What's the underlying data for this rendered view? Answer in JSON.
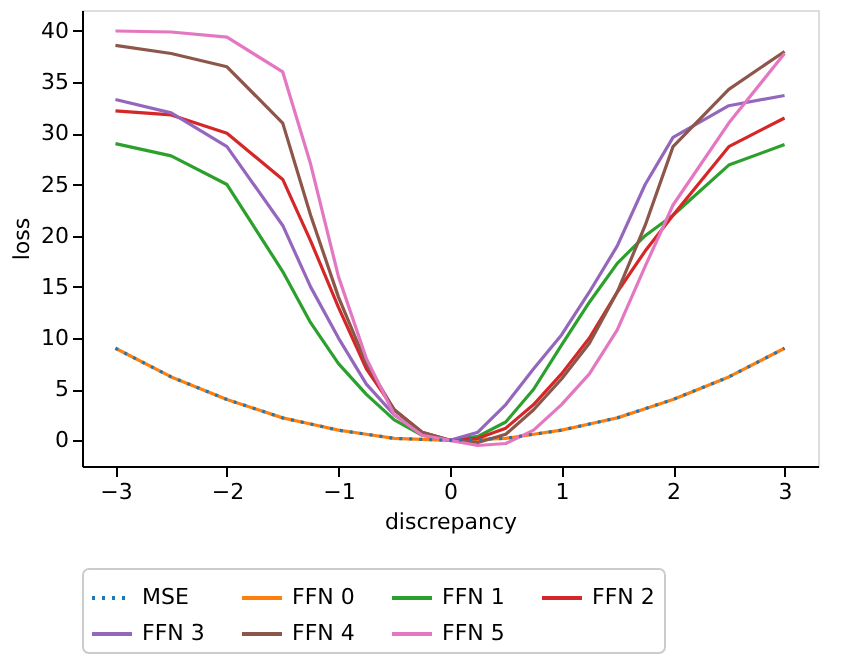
{
  "chart_data": {
    "type": "line",
    "xlabel": "discrepancy",
    "ylabel": "loss",
    "x": [
      -3,
      -2.5,
      -2,
      -1.5,
      -1.25,
      -1,
      -0.75,
      -0.5,
      -0.25,
      0,
      0.25,
      0.5,
      0.75,
      1,
      1.25,
      1.5,
      1.75,
      2,
      2.5,
      3
    ],
    "xlim": [
      -3.3,
      3.3
    ],
    "xticks": [
      -3,
      -2,
      -1,
      0,
      1,
      2,
      3
    ],
    "ylim": [
      -2.5,
      42.05
    ],
    "yticks": [
      0,
      5,
      10,
      15,
      20,
      25,
      30,
      35,
      40
    ],
    "grid": false,
    "legend": "bottom",
    "series": [
      {
        "name": "MSE",
        "color": "#1f77b4",
        "line_style": "dotted",
        "values": [
          9,
          6.2,
          4,
          2.2,
          1.6,
          1,
          0.6,
          0.2,
          0.1,
          0,
          0.1,
          0.2,
          0.6,
          1,
          1.6,
          2.2,
          3.1,
          4,
          6.2,
          9
        ]
      },
      {
        "name": "FFN 0",
        "color": "#ff7f0e",
        "line_style": "solid",
        "values": [
          9,
          6.2,
          4,
          2.2,
          1.6,
          1,
          0.6,
          0.2,
          0.1,
          0,
          0.1,
          0.2,
          0.6,
          1,
          1.6,
          2.2,
          3.1,
          4,
          6.2,
          9
        ]
      },
      {
        "name": "FFN 1",
        "color": "#2ca02c",
        "line_style": "solid",
        "values": [
          29,
          27.8,
          25,
          16.5,
          11.5,
          7.5,
          4.5,
          2,
          0.5,
          0,
          0.4,
          1.8,
          5,
          9.3,
          13.5,
          17.3,
          20,
          22,
          26.9,
          28.9
        ]
      },
      {
        "name": "FFN 2",
        "color": "#d62728",
        "line_style": "solid",
        "values": [
          32.2,
          31.8,
          30,
          25.5,
          19.5,
          13,
          7,
          3,
          0.8,
          0,
          0.2,
          1.2,
          3.5,
          6.5,
          10,
          14.5,
          18.5,
          22,
          28.7,
          31.5
        ]
      },
      {
        "name": "FFN 3",
        "color": "#9467bd",
        "line_style": "solid",
        "values": [
          33.3,
          32,
          28.7,
          21,
          15,
          10,
          5.5,
          2.5,
          0.6,
          0,
          0.8,
          3.5,
          7,
          10.3,
          14.5,
          19,
          25,
          29.6,
          32.7,
          33.7
        ]
      },
      {
        "name": "FFN 4",
        "color": "#8c564b",
        "line_style": "solid",
        "values": [
          38.6,
          37.8,
          36.5,
          31,
          22,
          14,
          7.5,
          3,
          0.8,
          0,
          -0.2,
          0.6,
          3,
          6,
          9.5,
          14.5,
          21,
          28.7,
          34.3,
          38
        ]
      },
      {
        "name": "FFN 5",
        "color": "#e377c2",
        "line_style": "solid",
        "values": [
          40,
          39.9,
          39.4,
          36,
          27,
          16,
          8,
          2.5,
          0.5,
          0,
          -0.5,
          -0.3,
          1,
          3.5,
          6.5,
          10.8,
          17,
          23,
          31,
          37.8
        ]
      }
    ]
  }
}
